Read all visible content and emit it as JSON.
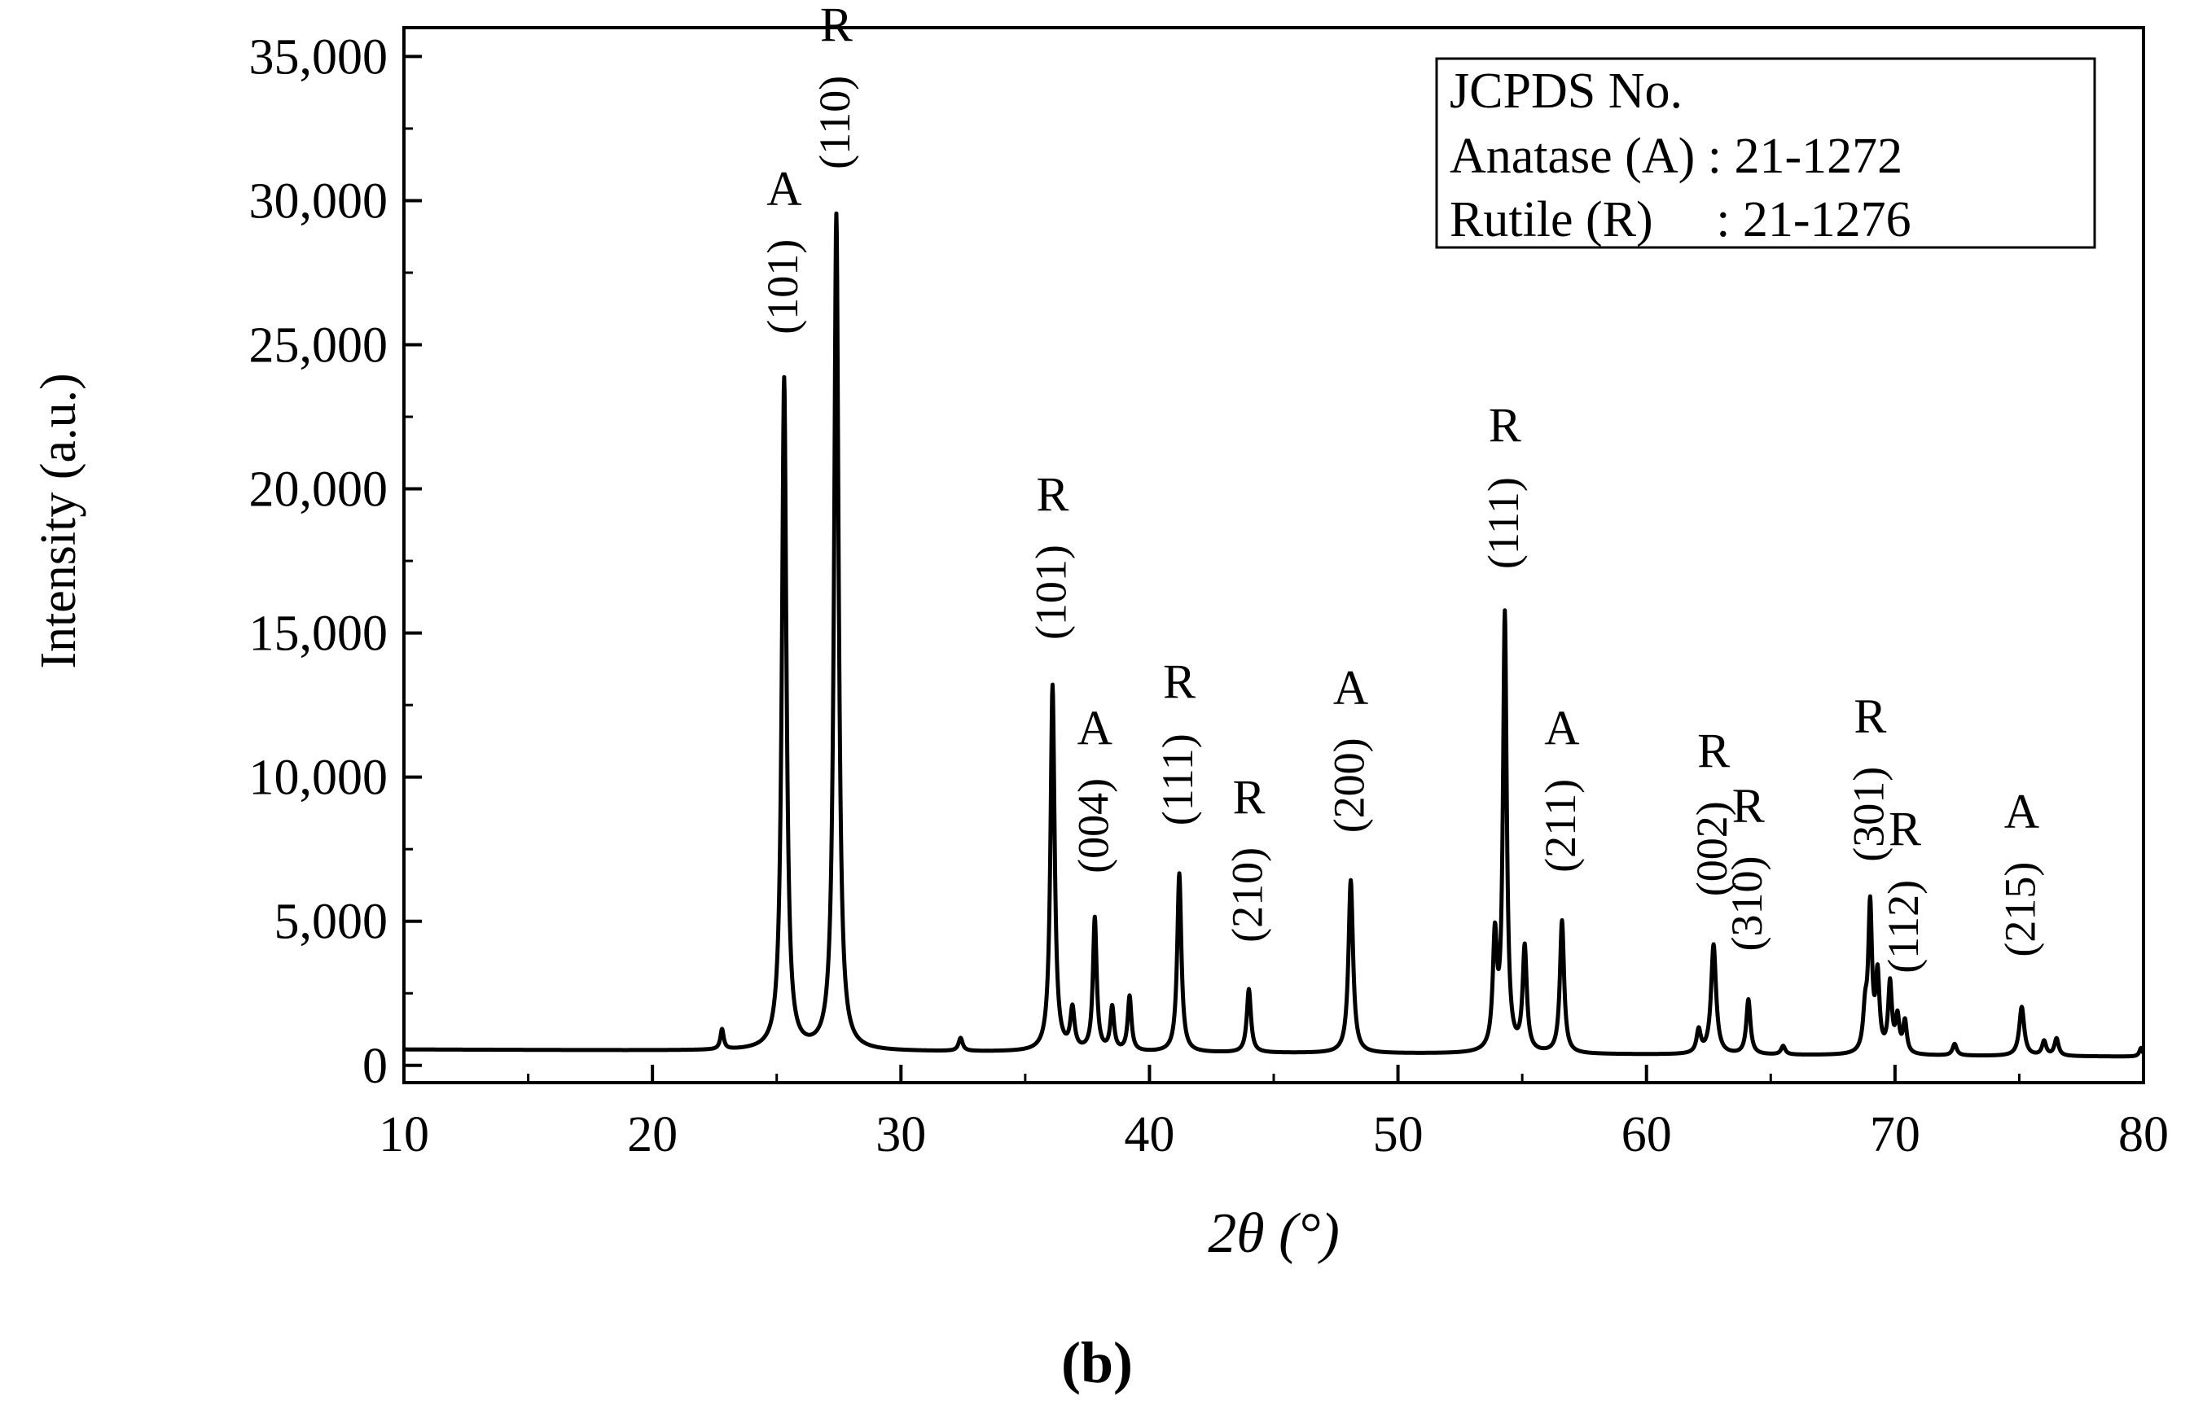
{
  "chart_data": {
    "type": "line",
    "xlabel": "2θ (°)",
    "ylabel": "Intensity (a.u.)",
    "xlim": [
      10,
      80
    ],
    "ylim": [
      -600,
      36000
    ],
    "xticks": [
      10,
      20,
      30,
      40,
      50,
      60,
      70,
      80
    ],
    "yticks": [
      0,
      5000,
      10000,
      15000,
      20000,
      25000,
      30000,
      35000
    ],
    "ytick_labels": [
      "0",
      "5,000",
      "10,000",
      "15,000",
      "20,000",
      "25,000",
      "30,000",
      "35,000"
    ],
    "grid": false,
    "baseline": 550,
    "peaks": [
      {
        "x": 22.8,
        "y": 700,
        "w": 0.08
      },
      {
        "x": 25.3,
        "y": 23300,
        "w": 0.11,
        "phase": "A",
        "hkl": "(101)"
      },
      {
        "x": 27.4,
        "y": 29000,
        "w": 0.11,
        "phase": "R",
        "hkl": "(110)"
      },
      {
        "x": 32.4,
        "y": 450,
        "w": 0.1
      },
      {
        "x": 36.1,
        "y": 12700,
        "w": 0.1,
        "phase": "R",
        "hkl": "(101)"
      },
      {
        "x": 36.9,
        "y": 1400,
        "w": 0.1
      },
      {
        "x": 37.8,
        "y": 4600,
        "w": 0.09,
        "phase": "A",
        "hkl": "(004)"
      },
      {
        "x": 38.5,
        "y": 1500,
        "w": 0.09
      },
      {
        "x": 39.2,
        "y": 1900,
        "w": 0.09
      },
      {
        "x": 41.2,
        "y": 6200,
        "w": 0.1,
        "phase": "R",
        "hkl": "(111)"
      },
      {
        "x": 44.0,
        "y": 2200,
        "w": 0.1,
        "phase": "R",
        "hkl": "(210)"
      },
      {
        "x": 48.1,
        "y": 6000,
        "w": 0.11,
        "phase": "A",
        "hkl": "(200)"
      },
      {
        "x": 53.9,
        "y": 3800,
        "w": 0.1
      },
      {
        "x": 54.3,
        "y": 15100,
        "w": 0.09,
        "phase": "R",
        "hkl": "(111)"
      },
      {
        "x": 55.1,
        "y": 3600,
        "w": 0.1
      },
      {
        "x": 56.6,
        "y": 4600,
        "w": 0.1,
        "phase": "A",
        "hkl": "(211)"
      },
      {
        "x": 62.1,
        "y": 800,
        "w": 0.1
      },
      {
        "x": 62.7,
        "y": 3800,
        "w": 0.12,
        "phase": "R",
        "hkl": "(002)"
      },
      {
        "x": 64.1,
        "y": 1900,
        "w": 0.1,
        "phase": "R",
        "hkl": "(310)"
      },
      {
        "x": 65.5,
        "y": 300,
        "w": 0.1
      },
      {
        "x": 68.8,
        "y": 1300,
        "w": 0.1
      },
      {
        "x": 69.0,
        "y": 5000,
        "w": 0.09,
        "phase": "R",
        "hkl": "(301)"
      },
      {
        "x": 69.3,
        "y": 2600,
        "w": 0.09
      },
      {
        "x": 69.8,
        "y": 2400,
        "w": 0.09
      },
      {
        "x": 70.1,
        "y": 1200,
        "w": 0.09
      },
      {
        "x": 70.4,
        "y": 1100,
        "w": 0.09,
        "phase": "R",
        "hkl": "(112)"
      },
      {
        "x": 72.4,
        "y": 400,
        "w": 0.1
      },
      {
        "x": 75.1,
        "y": 1700,
        "w": 0.12,
        "phase": "A",
        "hkl": "(215)"
      },
      {
        "x": 76.0,
        "y": 500,
        "w": 0.1
      },
      {
        "x": 76.5,
        "y": 600,
        "w": 0.1
      },
      {
        "x": 79.9,
        "y": 300,
        "w": 0.08
      }
    ],
    "legend_box": {
      "title": "JCPDS No.",
      "lines": [
        "Anatase (A) : 21-1272",
        "Rutile (R)     : 21-1276"
      ],
      "position": "top-right"
    }
  },
  "figure_label": "(b)"
}
